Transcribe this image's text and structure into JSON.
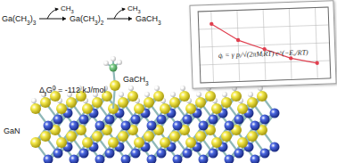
{
  "scheme": {
    "species": [
      "Ga(CH3)3",
      "Ga(CH3)2",
      "GaCH3"
    ],
    "leaving": [
      "CH3",
      "CH3"
    ]
  },
  "energy": {
    "prefix": "Δ",
    "sub": "f",
    "main": "G",
    "sup": "0",
    "rest": " = -112 kJ/mol"
  },
  "molecule_label": "GaCH3",
  "surface_label": "GaN",
  "chart_data": {
    "type": "line",
    "annotation": "q̇ᵢ = γ pᵢ/√(2πMᵢRT) e^(−Eₐ/RT)",
    "x": [
      1,
      2,
      3,
      4,
      5
    ],
    "values": [
      0.82,
      0.58,
      0.44,
      0.3,
      0.22
    ],
    "color": "#e04050",
    "marker": "circle",
    "xlim": [
      0.5,
      5.5
    ],
    "ylim": [
      0,
      1
    ],
    "xticks": [
      1,
      2,
      3,
      4,
      5
    ],
    "yticks": [
      0,
      0.25,
      0.5,
      0.75,
      1
    ],
    "grid": true,
    "tick_labels": false
  }
}
